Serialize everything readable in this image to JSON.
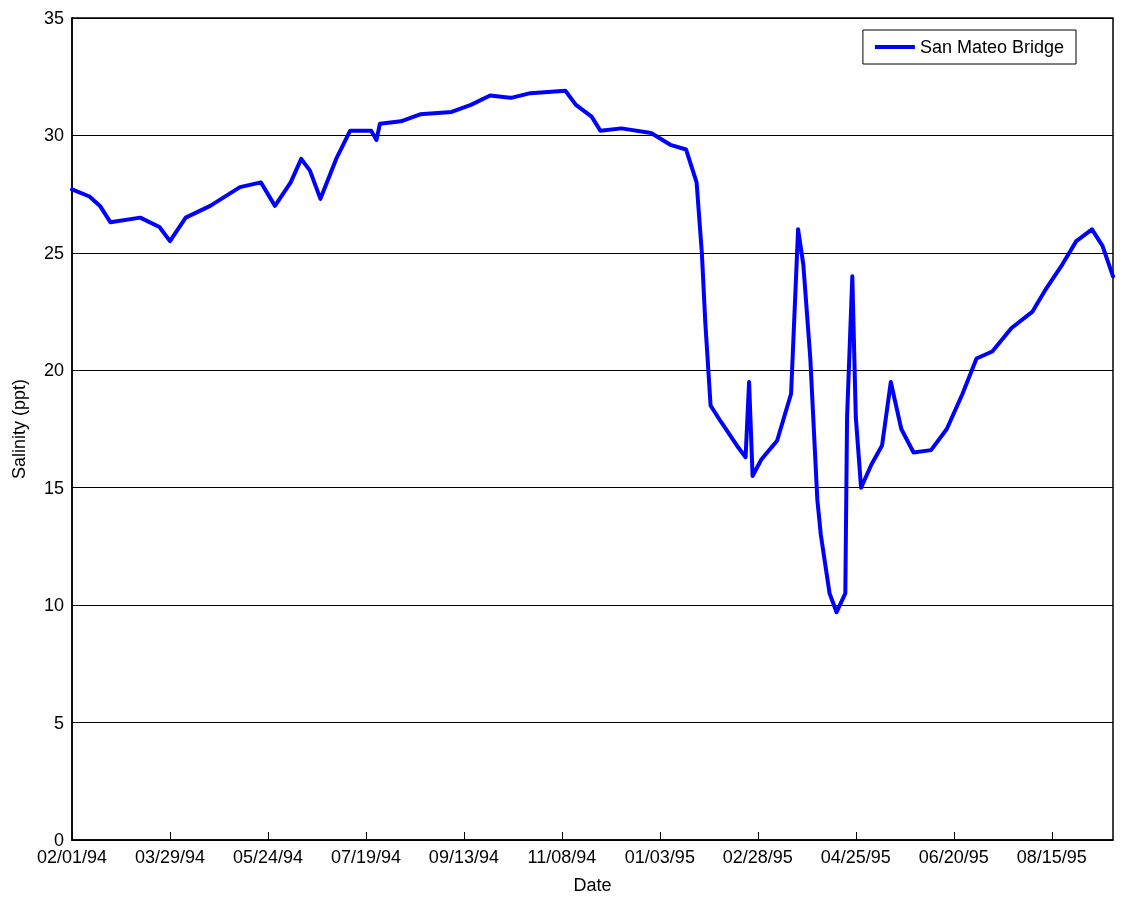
{
  "chart_data": {
    "type": "line",
    "xlabel": "Date",
    "ylabel": "Salinity (ppt)",
    "xlim": [
      "1994-02-01",
      "1995-09-19"
    ],
    "xticks": [
      {
        "value": "1994-02-01",
        "label": "02/01/94"
      },
      {
        "value": "1994-03-29",
        "label": "03/29/94"
      },
      {
        "value": "1994-05-24",
        "label": "05/24/94"
      },
      {
        "value": "1994-07-19",
        "label": "07/19/94"
      },
      {
        "value": "1994-09-13",
        "label": "09/13/94"
      },
      {
        "value": "1994-11-08",
        "label": "11/08/94"
      },
      {
        "value": "1995-01-03",
        "label": "01/03/95"
      },
      {
        "value": "1995-02-28",
        "label": "02/28/95"
      },
      {
        "value": "1995-04-25",
        "label": "04/25/95"
      },
      {
        "value": "1995-06-20",
        "label": "06/20/95"
      },
      {
        "value": "1995-08-15",
        "label": "08/15/95"
      }
    ],
    "ylim": [
      0,
      35
    ],
    "yticks": [
      0,
      5,
      10,
      15,
      20,
      25,
      30,
      35
    ],
    "grid": "y",
    "legend": "top right",
    "marker": "none",
    "line_style": "solid",
    "series": [
      {
        "name": "San Mateo Bridge",
        "color": "#0000ff",
        "x": [
          "1994-02-01",
          "1994-02-11",
          "1994-02-17",
          "1994-02-23",
          "1994-03-12",
          "1994-03-23",
          "1994-03-29",
          "1994-04-07",
          "1994-04-21",
          "1994-05-08",
          "1994-05-20",
          "1994-05-28",
          "1994-06-06",
          "1994-06-12",
          "1994-06-17",
          "1994-06-23",
          "1994-07-02",
          "1994-07-10",
          "1994-07-22",
          "1994-07-25",
          "1994-07-27",
          "1994-08-08",
          "1994-08-19",
          "1994-09-06",
          "1994-09-17",
          "1994-09-28",
          "1994-10-10",
          "1994-10-21",
          "1994-11-10",
          "1994-11-16",
          "1994-11-25",
          "1994-11-30",
          "1994-12-12",
          "1994-12-29",
          "1995-01-09",
          "1995-01-18",
          "1995-01-24",
          "1995-01-27",
          "1995-01-29",
          "1995-02-01",
          "1995-02-07",
          "1995-02-16",
          "1995-02-21",
          "1995-02-23",
          "1995-02-25",
          "1995-03-02",
          "1995-03-11",
          "1995-03-19",
          "1995-03-23",
          "1995-03-26",
          "1995-03-30",
          "1995-04-03",
          "1995-04-05",
          "1995-04-10",
          "1995-04-14",
          "1995-04-19",
          "1995-04-20",
          "1995-04-23",
          "1995-04-25",
          "1995-04-28",
          "1995-05-04",
          "1995-05-10",
          "1995-05-15",
          "1995-05-21",
          "1995-05-28",
          "1995-06-07",
          "1995-06-16",
          "1995-06-25",
          "1995-07-03",
          "1995-07-12",
          "1995-07-23",
          "1995-08-04",
          "1995-08-12",
          "1995-08-21",
          "1995-08-29",
          "1995-09-07",
          "1995-09-13",
          "1995-09-19"
        ],
        "values": [
          27.7,
          27.4,
          27.0,
          26.3,
          26.5,
          26.1,
          25.5,
          26.5,
          27.0,
          27.8,
          28.0,
          27.0,
          28.0,
          29.0,
          28.5,
          27.3,
          29.0,
          30.2,
          30.2,
          29.8,
          30.5,
          30.6,
          30.9,
          31.0,
          31.3,
          31.7,
          31.6,
          31.8,
          31.9,
          31.3,
          30.8,
          30.2,
          30.3,
          30.1,
          29.6,
          29.4,
          28.0,
          25.0,
          22.0,
          18.5,
          17.8,
          16.8,
          16.3,
          19.5,
          15.5,
          16.2,
          17.0,
          19.0,
          26.0,
          24.5,
          20.5,
          14.5,
          13.0,
          10.5,
          9.7,
          10.5,
          18.0,
          24.0,
          18.0,
          15.0,
          16.0,
          16.8,
          19.5,
          17.5,
          16.5,
          16.6,
          17.5,
          19.0,
          20.5,
          20.8,
          21.8,
          22.5,
          23.5,
          24.5,
          25.5,
          26.0,
          25.3,
          24.0
        ]
      }
    ]
  }
}
